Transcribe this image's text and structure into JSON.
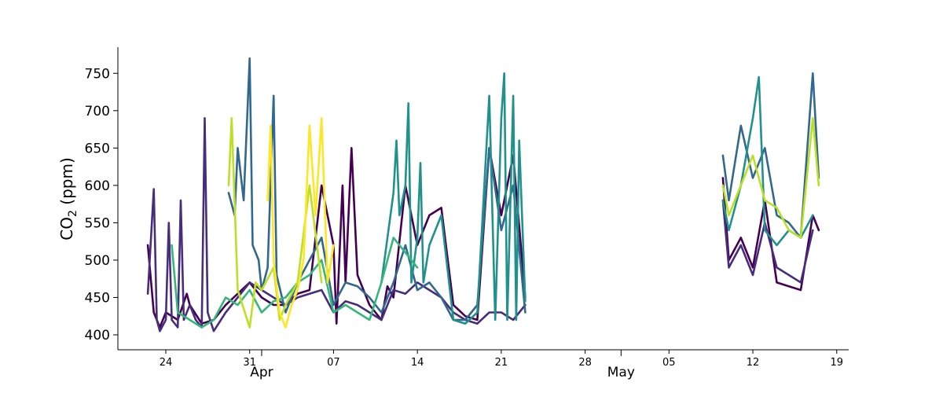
{
  "chart_data": {
    "type": "line",
    "title": "",
    "xlabel": "",
    "ylabel_main": "CO",
    "ylabel_sub": "2",
    "ylabel_unit": " (ppm)",
    "ylim": [
      380,
      785
    ],
    "xlim": [
      "2020-03-20",
      "2020-05-20"
    ],
    "yticks": [
      400,
      450,
      500,
      550,
      600,
      650,
      700,
      750
    ],
    "xticks_minor": [
      {
        "date": "2020-03-24",
        "label": "24"
      },
      {
        "date": "2020-03-31",
        "label": "31"
      },
      {
        "date": "2020-04-07",
        "label": "07"
      },
      {
        "date": "2020-04-14",
        "label": "14"
      },
      {
        "date": "2020-04-21",
        "label": "21"
      },
      {
        "date": "2020-04-28",
        "label": "28"
      },
      {
        "date": "2020-05-05",
        "label": "05"
      },
      {
        "date": "2020-05-12",
        "label": "12"
      },
      {
        "date": "2020-05-19",
        "label": "19"
      }
    ],
    "xticks_major": [
      {
        "date": "2020-04-01",
        "label": "Apr"
      },
      {
        "date": "2020-05-01",
        "label": "May"
      }
    ],
    "grid": false,
    "series": [
      {
        "color": "#440154",
        "points": [
          [
            "2020-03-22T12:00",
            520
          ],
          [
            "2020-03-23",
            430
          ],
          [
            "2020-03-23T12:00",
            410
          ],
          [
            "2020-03-24",
            430
          ],
          [
            "2020-03-25",
            420
          ],
          [
            "2020-03-25T18:00",
            455
          ],
          [
            "2020-03-26",
            440
          ],
          [
            "2020-03-27",
            415
          ],
          [
            "2020-03-28",
            420
          ],
          [
            "2020-03-29",
            440
          ],
          [
            "2020-03-30",
            455
          ],
          [
            "2020-03-31",
            470
          ],
          [
            "2020-04-01",
            450
          ],
          [
            "2020-04-02",
            440
          ],
          [
            "2020-04-03",
            440
          ],
          [
            "2020-04-04",
            455
          ],
          [
            "2020-04-05",
            460
          ],
          [
            "2020-04-06",
            600
          ],
          [
            "2020-04-07",
            520
          ],
          [
            "2020-04-07T06:00",
            415
          ],
          [
            "2020-04-07T18:00",
            600
          ],
          [
            "2020-04-08",
            470
          ],
          [
            "2020-04-08T12:00",
            650
          ],
          [
            "2020-04-09",
            480
          ],
          [
            "2020-04-10",
            440
          ],
          [
            "2020-04-11",
            420
          ],
          [
            "2020-04-11T12:00",
            465
          ],
          [
            "2020-04-12",
            450
          ],
          [
            "2020-04-13",
            600
          ],
          [
            "2020-04-14",
            520
          ],
          [
            "2020-04-15",
            560
          ],
          [
            "2020-04-16",
            570
          ],
          [
            "2020-04-17",
            440
          ],
          [
            "2020-04-18",
            425
          ],
          [
            "2020-04-19",
            420
          ],
          [
            "2020-04-20",
            650
          ],
          [
            "2020-04-21",
            560
          ],
          [
            "2020-04-22",
            640
          ],
          [
            "2020-04-23",
            450
          ],
          [
            "2020-05-09T12:00",
            610
          ],
          [
            "2020-05-10",
            500
          ],
          [
            "2020-05-11",
            530
          ],
          [
            "2020-05-12",
            490
          ],
          [
            "2020-05-13",
            580
          ],
          [
            "2020-05-14",
            470
          ],
          [
            "2020-05-15",
            465
          ],
          [
            "2020-05-16",
            460
          ],
          [
            "2020-05-17",
            560
          ],
          [
            "2020-05-17T12:00",
            540
          ]
        ]
      },
      {
        "color": "#472d7b",
        "points": [
          [
            "2020-03-22T12:00",
            455
          ],
          [
            "2020-03-23",
            595
          ],
          [
            "2020-03-23T06:00",
            420
          ],
          [
            "2020-03-23T12:00",
            405
          ],
          [
            "2020-03-24",
            420
          ],
          [
            "2020-03-24T06:00",
            550
          ],
          [
            "2020-03-24T12:00",
            420
          ],
          [
            "2020-03-25",
            410
          ],
          [
            "2020-03-25T06:00",
            580
          ],
          [
            "2020-03-25T12:00",
            420
          ],
          [
            "2020-03-26",
            440
          ],
          [
            "2020-03-26T12:00",
            420
          ],
          [
            "2020-03-27",
            410
          ],
          [
            "2020-03-27T06:00",
            690
          ],
          [
            "2020-03-27T12:00",
            430
          ],
          [
            "2020-03-28",
            405
          ],
          [
            "2020-03-29",
            430
          ],
          [
            "2020-03-30",
            450
          ],
          [
            "2020-03-31",
            470
          ],
          [
            "2020-04-01",
            460
          ],
          [
            "2020-04-02",
            450
          ],
          [
            "2020-04-03",
            440
          ],
          [
            "2020-04-04",
            450
          ],
          [
            "2020-04-05",
            455
          ],
          [
            "2020-04-06",
            460
          ],
          [
            "2020-04-07",
            430
          ],
          [
            "2020-04-08",
            445
          ],
          [
            "2020-04-09",
            440
          ],
          [
            "2020-04-10",
            430
          ],
          [
            "2020-04-11",
            420
          ],
          [
            "2020-04-12",
            460
          ],
          [
            "2020-04-13",
            455
          ],
          [
            "2020-04-14",
            470
          ],
          [
            "2020-04-15",
            460
          ],
          [
            "2020-04-16",
            450
          ],
          [
            "2020-04-17",
            430
          ],
          [
            "2020-04-18",
            420
          ],
          [
            "2020-04-19",
            415
          ],
          [
            "2020-04-20",
            430
          ],
          [
            "2020-04-21",
            430
          ],
          [
            "2020-04-22",
            420
          ],
          [
            "2020-04-23",
            440
          ],
          [
            "2020-05-09T12:00",
            580
          ],
          [
            "2020-05-10",
            490
          ],
          [
            "2020-05-11",
            520
          ],
          [
            "2020-05-12",
            480
          ],
          [
            "2020-05-13",
            550
          ],
          [
            "2020-05-14",
            490
          ],
          [
            "2020-05-15",
            480
          ],
          [
            "2020-05-16",
            470
          ],
          [
            "2020-05-17",
            540
          ]
        ]
      },
      {
        "color": "#31688e",
        "points": [
          [
            "2020-03-29T06:00",
            590
          ],
          [
            "2020-03-29T18:00",
            560
          ],
          [
            "2020-03-30",
            650
          ],
          [
            "2020-03-30T12:00",
            580
          ],
          [
            "2020-03-31",
            770
          ],
          [
            "2020-03-31T06:00",
            520
          ],
          [
            "2020-03-31T18:00",
            500
          ],
          [
            "2020-04-01",
            460
          ],
          [
            "2020-04-01T12:00",
            490
          ],
          [
            "2020-04-02",
            720
          ],
          [
            "2020-04-02T06:00",
            480
          ],
          [
            "2020-04-03",
            430
          ],
          [
            "2020-04-04",
            470
          ],
          [
            "2020-04-05",
            500
          ],
          [
            "2020-04-06",
            530
          ],
          [
            "2020-04-07",
            440
          ],
          [
            "2020-04-08",
            470
          ],
          [
            "2020-04-09",
            465
          ],
          [
            "2020-04-10",
            450
          ],
          [
            "2020-04-11",
            430
          ],
          [
            "2020-04-12",
            470
          ],
          [
            "2020-04-13",
            520
          ],
          [
            "2020-04-14",
            460
          ],
          [
            "2020-04-15",
            470
          ],
          [
            "2020-04-16",
            450
          ],
          [
            "2020-04-17",
            420
          ],
          [
            "2020-04-18",
            420
          ],
          [
            "2020-04-19",
            440
          ],
          [
            "2020-04-20",
            650
          ],
          [
            "2020-04-21",
            540
          ],
          [
            "2020-04-22",
            600
          ],
          [
            "2020-04-23",
            430
          ],
          [
            "2020-05-09T12:00",
            640
          ],
          [
            "2020-05-10",
            580
          ],
          [
            "2020-05-11",
            680
          ],
          [
            "2020-05-12",
            610
          ],
          [
            "2020-05-13",
            650
          ],
          [
            "2020-05-14",
            560
          ],
          [
            "2020-05-15",
            550
          ],
          [
            "2020-05-16",
            530
          ],
          [
            "2020-05-17",
            750
          ],
          [
            "2020-05-17T12:00",
            610
          ]
        ]
      },
      {
        "color": "#21918c",
        "points": [
          [
            "2020-04-11",
            470
          ],
          [
            "2020-04-12",
            590
          ],
          [
            "2020-04-12T06:00",
            660
          ],
          [
            "2020-04-12T12:00",
            560
          ],
          [
            "2020-04-13",
            600
          ],
          [
            "2020-04-13T06:00",
            710
          ],
          [
            "2020-04-13T12:00",
            470
          ],
          [
            "2020-04-14",
            530
          ],
          [
            "2020-04-14T06:00",
            630
          ],
          [
            "2020-04-14T12:00",
            470
          ],
          [
            "2020-04-15",
            520
          ],
          [
            "2020-04-16",
            560
          ],
          [
            "2020-04-17",
            420
          ],
          [
            "2020-04-18",
            415
          ],
          [
            "2020-04-19",
            430
          ],
          [
            "2020-04-20",
            720
          ],
          [
            "2020-04-20T12:00",
            420
          ],
          [
            "2020-04-21",
            690
          ],
          [
            "2020-04-21T06:00",
            750
          ],
          [
            "2020-04-21T12:00",
            420
          ],
          [
            "2020-04-22",
            720
          ],
          [
            "2020-04-22T06:00",
            420
          ],
          [
            "2020-04-22T12:00",
            660
          ],
          [
            "2020-04-23",
            445
          ],
          [
            "2020-05-09T12:00",
            580
          ],
          [
            "2020-05-10",
            540
          ],
          [
            "2020-05-11",
            600
          ],
          [
            "2020-05-12",
            690
          ],
          [
            "2020-05-12T12:00",
            745
          ],
          [
            "2020-05-13",
            540
          ],
          [
            "2020-05-14",
            520
          ],
          [
            "2020-05-15",
            540
          ],
          [
            "2020-05-16",
            530
          ],
          [
            "2020-05-17",
            560
          ]
        ]
      },
      {
        "color": "#35b779",
        "points": [
          [
            "2020-03-24T12:00",
            520
          ],
          [
            "2020-03-25",
            430
          ],
          [
            "2020-03-26",
            420
          ],
          [
            "2020-03-27",
            410
          ],
          [
            "2020-03-28",
            420
          ],
          [
            "2020-03-29",
            450
          ],
          [
            "2020-03-30",
            440
          ],
          [
            "2020-03-31",
            460
          ],
          [
            "2020-04-01",
            430
          ],
          [
            "2020-04-02",
            445
          ],
          [
            "2020-04-03",
            450
          ],
          [
            "2020-04-04",
            470
          ],
          [
            "2020-04-05",
            480
          ],
          [
            "2020-04-06",
            500
          ],
          [
            "2020-04-07",
            430
          ],
          [
            "2020-04-08",
            440
          ],
          [
            "2020-04-09",
            430
          ],
          [
            "2020-04-10",
            420
          ],
          [
            "2020-04-11",
            470
          ],
          [
            "2020-04-12",
            530
          ],
          [
            "2020-04-13",
            510
          ],
          [
            "2020-04-14",
            490
          ]
        ]
      },
      {
        "color": "#bddf26",
        "points": [
          [
            "2020-03-29T06:00",
            600
          ],
          [
            "2020-03-29T12:00",
            690
          ],
          [
            "2020-03-30",
            460
          ],
          [
            "2020-03-31",
            410
          ],
          [
            "2020-03-31T12:00",
            470
          ],
          [
            "2020-04-01",
            460
          ],
          [
            "2020-04-02",
            490
          ],
          [
            "2020-04-02T12:00",
            420
          ],
          [
            "2020-04-03",
            440
          ],
          [
            "2020-04-04",
            470
          ],
          [
            "2020-04-05",
            600
          ],
          [
            "2020-04-06",
            470
          ],
          [
            "2020-05-09T12:00",
            600
          ],
          [
            "2020-05-10",
            560
          ],
          [
            "2020-05-11",
            600
          ],
          [
            "2020-05-12",
            640
          ],
          [
            "2020-05-13",
            580
          ],
          [
            "2020-05-14",
            570
          ],
          [
            "2020-05-15",
            540
          ],
          [
            "2020-05-16",
            530
          ],
          [
            "2020-05-17",
            690
          ],
          [
            "2020-05-17T12:00",
            600
          ]
        ]
      },
      {
        "color": "#fde725",
        "points": [
          [
            "2020-04-01T12:00",
            580
          ],
          [
            "2020-04-01T18:00",
            680
          ],
          [
            "2020-04-02",
            500
          ],
          [
            "2020-04-02T12:00",
            430
          ],
          [
            "2020-04-03",
            410
          ],
          [
            "2020-04-03T12:00",
            440
          ],
          [
            "2020-04-04",
            460
          ],
          [
            "2020-04-04T12:00",
            500
          ],
          [
            "2020-04-05",
            680
          ],
          [
            "2020-04-05T12:00",
            560
          ],
          [
            "2020-04-06",
            690
          ],
          [
            "2020-04-06T12:00",
            470
          ],
          [
            "2020-04-07",
            520
          ]
        ]
      }
    ]
  }
}
